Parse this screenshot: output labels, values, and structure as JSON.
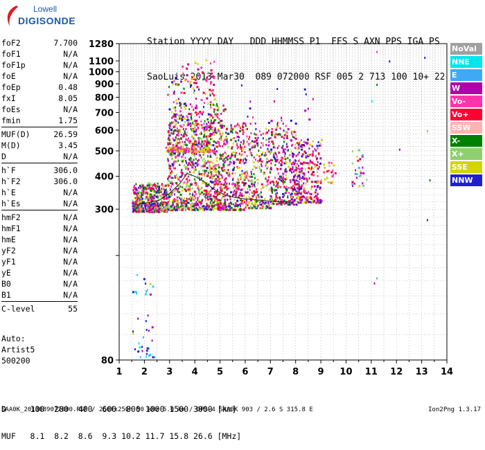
{
  "logo": {
    "brand": "Lowell",
    "name": "DIGISONDE"
  },
  "header": {
    "line1": "Station YYYY DAY   DDD HHMMSS P1  FFS S AXN PPS IGA PS",
    "line2": "SaoLuis 2013 Mar30  089 072000 RSF 005 2 713 100 10+ 22"
  },
  "params": [
    [
      [
        "foF2",
        "7.700"
      ],
      [
        "foF1",
        "N/A"
      ],
      [
        "foF1p",
        "N/A"
      ],
      [
        "foE",
        "N/A"
      ],
      [
        "foEp",
        "0.48"
      ],
      [
        "fxI",
        "8.05"
      ],
      [
        "foEs",
        "N/A"
      ],
      [
        "fmin",
        "1.75"
      ]
    ],
    [
      [
        "MUF(D)",
        "26.59"
      ],
      [
        "M(D)",
        "3.45"
      ],
      [
        "D",
        "N/A"
      ]
    ],
    [
      [
        "h`F",
        "306.0"
      ],
      [
        "h`F2",
        "306.0"
      ],
      [
        "h`E",
        "N/A"
      ],
      [
        "h`Es",
        "N/A"
      ]
    ],
    [
      [
        "hmF2",
        "N/A"
      ],
      [
        "hmF1",
        "N/A"
      ],
      [
        "hmE",
        "N/A"
      ],
      [
        "yF2",
        "N/A"
      ],
      [
        "yF1",
        "N/A"
      ],
      [
        "yE",
        "N/A"
      ],
      [
        "B0",
        "N/A"
      ],
      [
        "B1",
        "N/A"
      ]
    ],
    [
      [
        "C-level",
        "55"
      ]
    ]
  ],
  "auto": {
    "line1": "Auto:",
    "line2": "Artist5",
    "line3": "500200"
  },
  "legend": [
    {
      "label": "NoVal",
      "color": "#a0a0a0"
    },
    {
      "label": "NNE",
      "color": "#00e5ee"
    },
    {
      "label": "E",
      "color": "#3fa9f5"
    },
    {
      "label": "W",
      "color": "#b000b0"
    },
    {
      "label": "Vo-",
      "color": "#ff33aa"
    },
    {
      "label": "Vo+",
      "color": "#ff0033"
    },
    {
      "label": "SSW",
      "color": "#ffb3b3"
    },
    {
      "label": "X-",
      "color": "#008000"
    },
    {
      "label": "X+",
      "color": "#8fcf6f"
    },
    {
      "label": "SSE",
      "color": "#d4d400"
    },
    {
      "label": "NNW",
      "color": "#2020d0"
    }
  ],
  "dmuf": {
    "line1": "D     100  200  400  600  800 1000 1500 3000 [km]",
    "line2": "MUF   8.1  8.2  8.6  9.3 10.2 11.7 15.8 26.6 [MHz]"
  },
  "footer": "SAA0K_2013089072000.RSF / 260fx256h 50 kHz 5.0 km / DPS-4 SAA0K 903 / 2.6 S 315.8 E",
  "version": "Ion2Png 1.3.17",
  "chart_data": {
    "type": "scatter",
    "xlabel": "",
    "ylabel": "",
    "xlim": [
      1,
      14
    ],
    "ylim": [
      80,
      1280
    ],
    "xticks": [
      1,
      2,
      3,
      4,
      5,
      6,
      7,
      8,
      9,
      10,
      11,
      12,
      13,
      14
    ],
    "yticks": [
      80,
      200,
      300,
      400,
      500,
      600,
      700,
      800,
      900,
      1000,
      1100,
      1280
    ],
    "ytick_labels": [
      "80",
      "",
      "300",
      "400",
      "500",
      "600",
      "700",
      "800",
      "900",
      "1000",
      "1100",
      "1280"
    ],
    "y_scale": "log",
    "grid": true,
    "trace": {
      "x": [
        1.8,
        2.2,
        2.6,
        3.0,
        3.4,
        3.7,
        4.0,
        4.4,
        4.8,
        5.2,
        5.6,
        6.0,
        6.5,
        7.0,
        7.5,
        7.9
      ],
      "y": [
        315,
        318,
        325,
        345,
        375,
        410,
        400,
        380,
        355,
        340,
        332,
        328,
        325,
        322,
        320,
        318
      ]
    },
    "clusters": [
      {
        "x": [
          1.5,
          2.9
        ],
        "y": [
          295,
          380
        ],
        "n": 520,
        "colors": [
          "#ff33aa",
          "#ff0033",
          "#b000b0",
          "#2020d0",
          "#d4d400",
          "#008000",
          "#8fcf6f"
        ]
      },
      {
        "x": [
          2.9,
          4.7
        ],
        "y": [
          300,
          700
        ],
        "n": 700,
        "colors": [
          "#ff33aa",
          "#ff0033",
          "#b000b0",
          "#d4d400",
          "#008000",
          "#2020d0",
          "#8fcf6f"
        ]
      },
      {
        "x": [
          2.9,
          4.8
        ],
        "y": [
          500,
          980
        ],
        "n": 260,
        "colors": [
          "#d4d400",
          "#ff0033",
          "#ff33aa",
          "#b000b0",
          "#008000",
          "#2020d0"
        ]
      },
      {
        "x": [
          2.8,
          4.7
        ],
        "y": [
          500,
          520
        ],
        "n": 90,
        "colors": [
          "#d4d400",
          "#ff33aa"
        ]
      },
      {
        "x": [
          4.7,
          5.2
        ],
        "y": [
          300,
          760
        ],
        "n": 260,
        "colors": [
          "#d4d400",
          "#ff33aa",
          "#ff0033",
          "#b000b0",
          "#008000"
        ]
      },
      {
        "x": [
          5.2,
          6.0
        ],
        "y": [
          300,
          640
        ],
        "n": 260,
        "colors": [
          "#ff33aa",
          "#ff0033",
          "#b000b0",
          "#d4d400",
          "#2020d0",
          "#008000"
        ]
      },
      {
        "x": [
          6.0,
          7.0
        ],
        "y": [
          305,
          620
        ],
        "n": 260,
        "colors": [
          "#ff33aa",
          "#ff0033",
          "#b000b0",
          "#d4d400",
          "#2020d0",
          "#008000",
          "#8fcf6f"
        ]
      },
      {
        "x": [
          7.0,
          8.0
        ],
        "y": [
          315,
          640
        ],
        "n": 250,
        "colors": [
          "#ff33aa",
          "#ff0033",
          "#b000b0",
          "#d4d400",
          "#2020d0",
          "#008000"
        ]
      },
      {
        "x": [
          7.8,
          9.0
        ],
        "y": [
          320,
          560
        ],
        "n": 300,
        "colors": [
          "#b000b0",
          "#ff33aa",
          "#ff0033",
          "#2020d0",
          "#d4d400"
        ]
      },
      {
        "x": [
          9.0,
          9.6
        ],
        "y": [
          380,
          470
        ],
        "n": 20,
        "colors": [
          "#ff33aa",
          "#d4d400",
          "#ff0033"
        ]
      },
      {
        "x": [
          10.2,
          10.8
        ],
        "y": [
          370,
          520
        ],
        "n": 30,
        "colors": [
          "#d4d400",
          "#3fa9f5",
          "#ff0033",
          "#b000b0",
          "#8fcf6f"
        ]
      },
      {
        "x": [
          1.5,
          2.4
        ],
        "y": [
          82,
          170
        ],
        "n": 40,
        "colors": [
          "#3fa9f5",
          "#00e5ee",
          "#2020d0",
          "#b000b0",
          "#d4d400"
        ]
      },
      {
        "x": [
          3.2,
          4.8
        ],
        "y": [
          900,
          1120
        ],
        "n": 30,
        "colors": [
          "#d4d400",
          "#ff33aa",
          "#ff0033",
          "#b000b0"
        ]
      },
      {
        "x": [
          5.8,
          8.7
        ],
        "y": [
          640,
          900
        ],
        "n": 25,
        "colors": [
          "#b000b0",
          "#ff33aa",
          "#ff0033",
          "#2020d0"
        ]
      }
    ],
    "isolated_points": [
      {
        "x": 11.2,
        "y": 1200,
        "color": "#ff33aa"
      },
      {
        "x": 11.7,
        "y": 1105,
        "color": "#2020d0"
      },
      {
        "x": 13.1,
        "y": 1140,
        "color": "#2020d0"
      },
      {
        "x": 11.2,
        "y": 900,
        "color": "#008000"
      },
      {
        "x": 12.1,
        "y": 510,
        "color": "#b000b0"
      },
      {
        "x": 13.3,
        "y": 390,
        "color": "#008000"
      },
      {
        "x": 13.2,
        "y": 275,
        "color": "#2020d0"
      },
      {
        "x": 11.2,
        "y": 165,
        "color": "#3fa9f5"
      },
      {
        "x": 11.1,
        "y": 158,
        "color": "#b000b0"
      },
      {
        "x": 13.2,
        "y": 600,
        "color": "#8fcf6f"
      },
      {
        "x": 11.0,
        "y": 780,
        "color": "#00e5ee"
      }
    ]
  }
}
